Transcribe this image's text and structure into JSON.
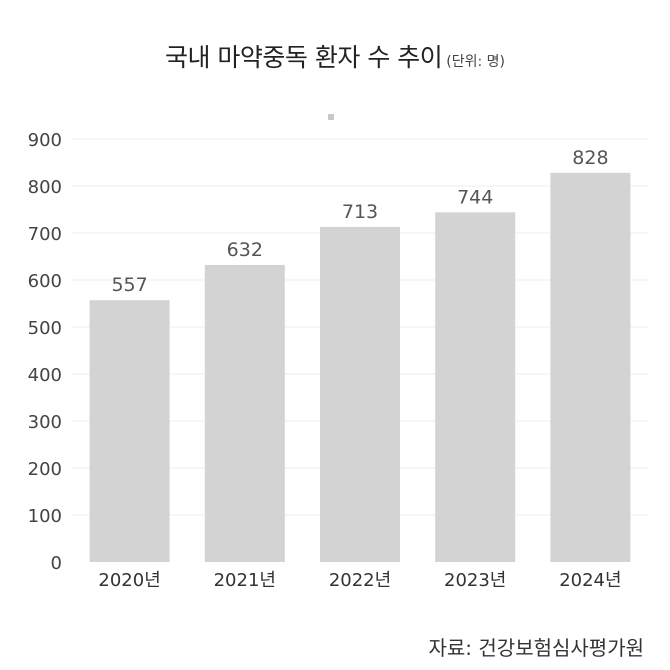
{
  "chart_data": {
    "type": "bar",
    "title": "국내 마약중독 환자 수 추이",
    "unit_note": "(단위: 명)",
    "categories": [
      "2020년",
      "2021년",
      "2022년",
      "2023년",
      "2024년"
    ],
    "values": [
      557,
      632,
      713,
      744,
      828
    ],
    "data_labels": [
      "557",
      "632",
      "713",
      "744",
      "828"
    ],
    "ylim": [
      0,
      900
    ],
    "yticks": [
      "0",
      "100",
      "200",
      "300",
      "400",
      "500",
      "600",
      "700",
      "800",
      "900"
    ],
    "ytick_values": [
      0,
      100,
      200,
      300,
      400,
      500,
      600,
      700,
      800,
      900
    ],
    "xlabel": "",
    "ylabel": "",
    "grid": true,
    "bar_color": "#d3d3d3",
    "grid_color": "#eeeeee",
    "source": "자료: 건강보험심사평가원"
  }
}
